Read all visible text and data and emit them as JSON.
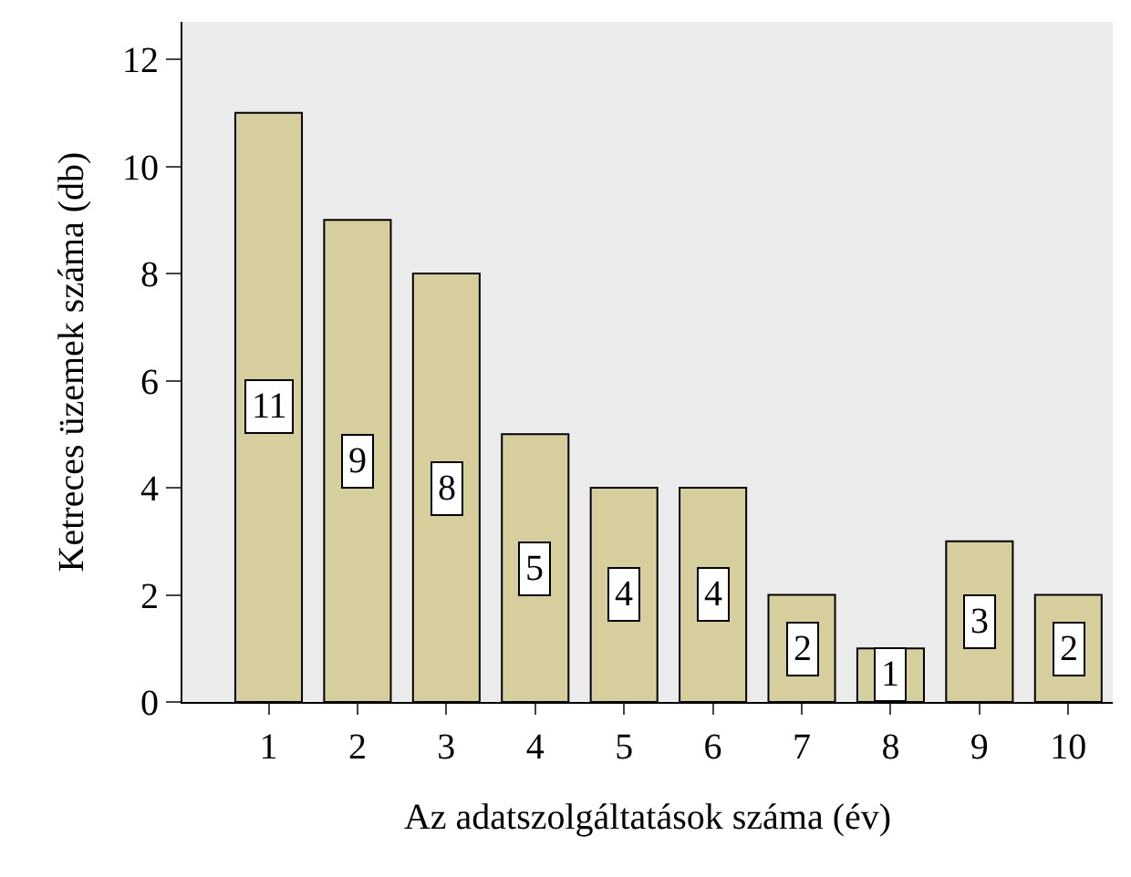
{
  "chart_data": {
    "type": "bar",
    "xlabel": "Az adatszolgáltatások száma (év)",
    "ylabel": "Ketreces üzemek száma (db)",
    "categories": [
      "1",
      "2",
      "3",
      "4",
      "5",
      "6",
      "7",
      "8",
      "9",
      "10"
    ],
    "values": [
      11,
      9,
      8,
      5,
      4,
      4,
      2,
      1,
      3,
      2
    ],
    "color": "#d6cf9d",
    "ylim": [
      0,
      12.7
    ],
    "yticks": [
      0,
      2,
      4,
      6,
      8,
      10,
      12
    ],
    "grid": false,
    "data_labels": true
  }
}
